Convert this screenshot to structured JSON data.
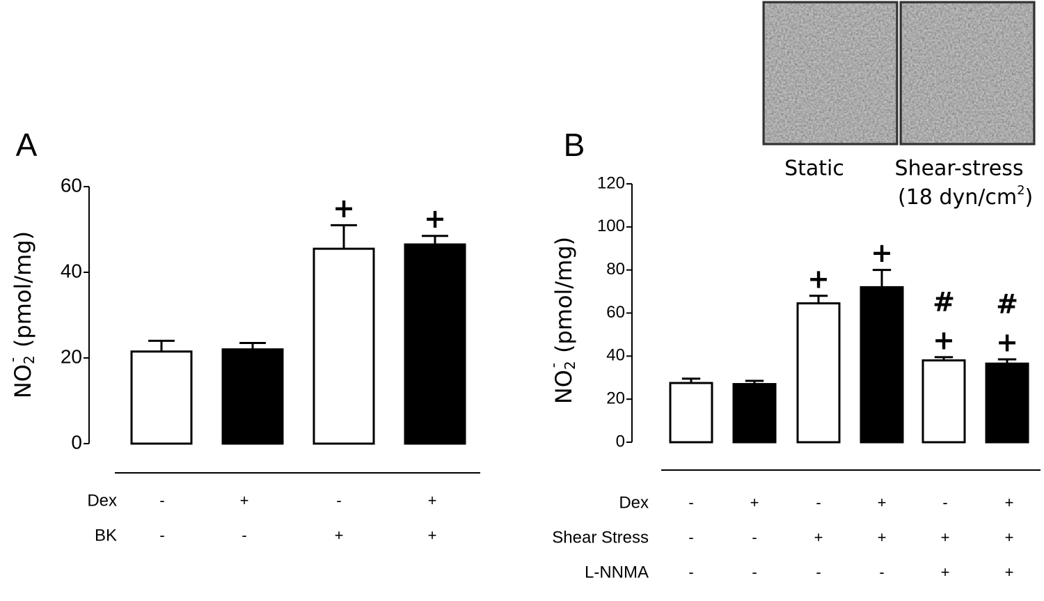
{
  "chart_data": [
    {
      "type": "bar",
      "panel": "A",
      "ylabel": {
        "text": "NO",
        "sub": "2",
        "sup": "-",
        "unit": "(pmol/mg)"
      },
      "ylim": [
        0,
        60
      ],
      "yticks": [
        0,
        20,
        40,
        60
      ],
      "values": [
        21.5,
        22,
        45.5,
        46.5
      ],
      "errors": [
        2.5,
        1.5,
        5.5,
        2
      ],
      "colors": [
        "#ffffff",
        "#000000",
        "#ffffff",
        "#000000"
      ],
      "marks_above": [
        [],
        [],
        [
          "+"
        ],
        [
          "+"
        ]
      ],
      "conditions": [
        {
          "name": "Dex",
          "values": [
            "-",
            "+",
            "-",
            "+"
          ]
        },
        {
          "name": "BK",
          "values": [
            "-",
            "-",
            "+",
            "+"
          ]
        }
      ]
    },
    {
      "type": "bar",
      "panel": "B",
      "ylabel": {
        "text": "NO",
        "sub": "2",
        "sup": "-",
        "unit": "(pmol/mg)"
      },
      "ylim": [
        0,
        120
      ],
      "yticks": [
        0,
        20,
        40,
        60,
        80,
        100,
        120
      ],
      "values": [
        27.5,
        27,
        64.5,
        72,
        38,
        36.5
      ],
      "errors": [
        2,
        1.5,
        3.5,
        8,
        1.5,
        2
      ],
      "colors": [
        "#ffffff",
        "#000000",
        "#ffffff",
        "#000000",
        "#ffffff",
        "#000000"
      ],
      "marks_above": [
        [],
        [],
        [
          "+"
        ],
        [
          "+"
        ],
        [
          "#",
          "+"
        ],
        [
          "#",
          "+"
        ]
      ],
      "conditions": [
        {
          "name": "Dex",
          "values": [
            "-",
            "+",
            "-",
            "+",
            "-",
            "+"
          ]
        },
        {
          "name": "Shear Stress",
          "values": [
            "-",
            "-",
            "+",
            "+",
            "+",
            "+"
          ]
        },
        {
          "name": "L-NNMA",
          "values": [
            "-",
            "-",
            "-",
            "-",
            "+",
            "+"
          ]
        }
      ]
    }
  ],
  "inset": {
    "captions": [
      "Static",
      "Shear-stress"
    ],
    "note": [
      "(18 dyn/cm",
      "2",
      ")"
    ]
  }
}
